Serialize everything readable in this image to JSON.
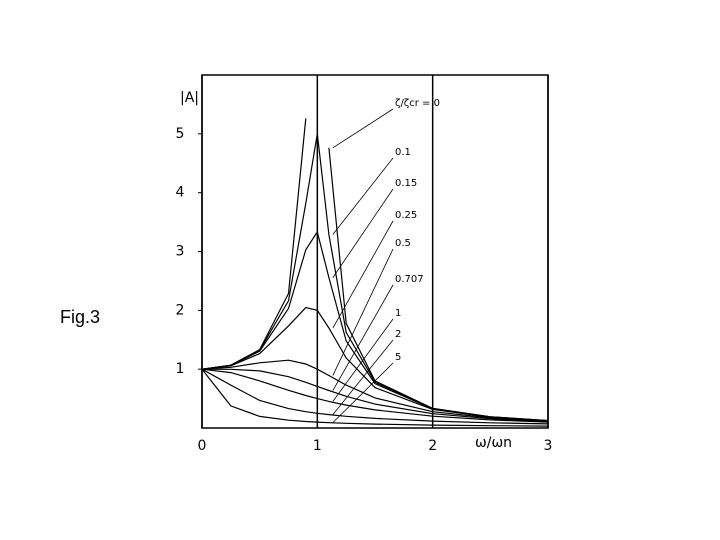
{
  "chart_data": {
    "type": "line",
    "annotation": "Fig.3",
    "ylabel": "|A|",
    "xlabel": "ω/ωn",
    "x": [
      0,
      0.25,
      0.5,
      0.75,
      0.9,
      1,
      1.1,
      1.25,
      1.5,
      2,
      2.5,
      3
    ],
    "series": [
      {
        "name": "ζ/ζcr = 0",
        "color": "#000000",
        "values": [
          1,
          1.067,
          1.333,
          2.286,
          5.263,
          null,
          4.762,
          1.778,
          0.8,
          0.333,
          0.19,
          0.125
        ]
      },
      {
        "name": "0.1",
        "color": "#000000",
        "values": [
          1,
          1.065,
          1.322,
          2.162,
          3.821,
          5,
          3.288,
          1.625,
          0.778,
          0.33,
          0.19,
          0.125
        ]
      },
      {
        "name": "0.15",
        "color": "#000000",
        "values": [
          1,
          1.063,
          1.307,
          2.033,
          3.029,
          3.333,
          2.556,
          1.479,
          0.753,
          0.327,
          0.189,
          0.124
        ]
      },
      {
        "name": "0.25",
        "color": "#000000",
        "values": [
          1,
          1.057,
          1.265,
          1.735,
          2.047,
          2,
          1.699,
          1.189,
          0.686,
          0.316,
          0.185,
          0.123
        ]
      },
      {
        "name": "0.5",
        "color": "#000000",
        "values": [
          1,
          1.031,
          1.109,
          1.152,
          1.087,
          1,
          0.893,
          0.73,
          0.512,
          0.277,
          0.172,
          0.117
        ]
      },
      {
        "name": "0.707",
        "color": "#000000",
        "values": [
          1,
          0.998,
          0.97,
          0.872,
          0.777,
          0.707,
          0.637,
          0.539,
          0.406,
          0.243,
          0.158,
          0.11
        ]
      },
      {
        "name": "1",
        "color": "#000000",
        "values": [
          1,
          0.941,
          0.8,
          0.64,
          0.552,
          0.5,
          0.452,
          0.39,
          0.308,
          0.2,
          0.138,
          0.1
        ]
      },
      {
        "name": "2",
        "color": "#000000",
        "values": [
          1,
          0.73,
          0.468,
          0.33,
          0.277,
          0.25,
          0.227,
          0.199,
          0.163,
          0.117,
          0.0885,
          0.0693
        ]
      },
      {
        "name": "5",
        "color": "#000000",
        "values": [
          1,
          0.375,
          0.198,
          0.133,
          0.111,
          0.1,
          0.0909,
          0.0799,
          0.0664,
          0.0494,
          0.0391,
          0.0322
        ]
      }
    ],
    "xlim": [
      0,
      3
    ],
    "ylim": [
      0,
      6
    ],
    "xticks": [
      0,
      1,
      2,
      3
    ],
    "yticks": [
      1,
      2,
      3,
      4,
      5
    ],
    "grid": true
  }
}
